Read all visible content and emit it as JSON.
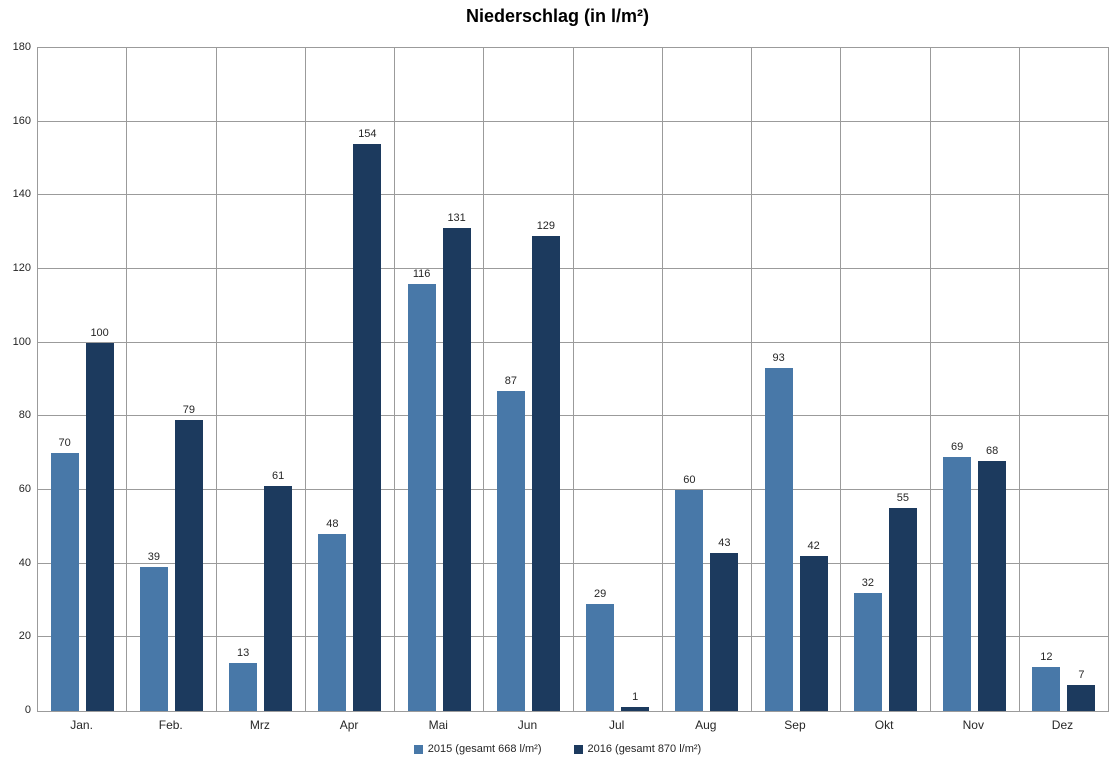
{
  "chart_data": {
    "type": "bar",
    "title": "Niederschlag (in l/m²)",
    "categories": [
      "Jan.",
      "Feb.",
      "Mrz",
      "Apr",
      "Mai",
      "Jun",
      "Jul",
      "Aug",
      "Sep",
      "Okt",
      "Nov",
      "Dez"
    ],
    "series": [
      {
        "name": "2015 (gesamt 668 l/m²)",
        "color": "#4878A8",
        "values": [
          70,
          39,
          13,
          48,
          116,
          87,
          29,
          60,
          93,
          32,
          69,
          12
        ]
      },
      {
        "name": "2016 (gesamt 870 l/m²)",
        "color": "#1C3A5E",
        "values": [
          100,
          79,
          61,
          154,
          131,
          129,
          1,
          43,
          42,
          55,
          68,
          7
        ]
      }
    ],
    "y_axis": {
      "min": 0,
      "max": 180,
      "step": 20,
      "ticks": [
        0,
        20,
        40,
        60,
        80,
        100,
        120,
        140,
        160,
        180
      ]
    },
    "xlabel": "",
    "ylabel": "",
    "grid": "horizontal-and-vertical",
    "gridline_color": "#9B9B9B",
    "data_labels": true,
    "legend_position": "bottom"
  }
}
